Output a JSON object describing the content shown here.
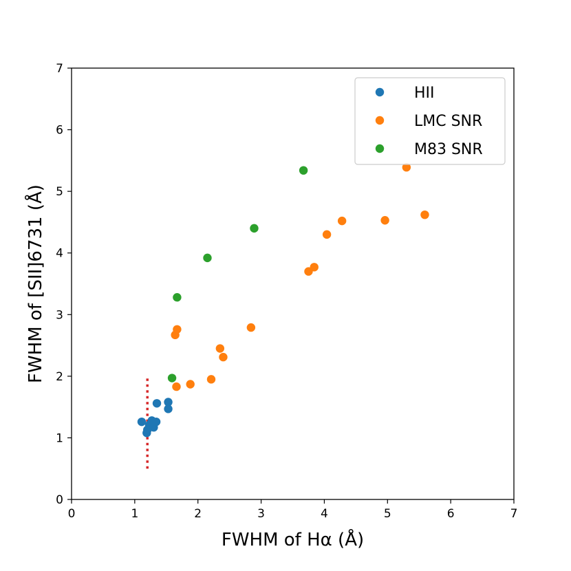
{
  "chart_data": {
    "type": "scatter",
    "title": "",
    "xlabel": "FWHM of Hα (Å)",
    "ylabel": "FWHM of [SII]6731 (Å)",
    "xlim": [
      0,
      7
    ],
    "ylim": [
      0,
      7
    ],
    "xticks": [
      "0",
      "1",
      "2",
      "3",
      "4",
      "5",
      "6",
      "7"
    ],
    "yticks": [
      "0",
      "1",
      "2",
      "3",
      "4",
      "5",
      "6",
      "7"
    ],
    "legend_position": "top-right",
    "series": [
      {
        "name": "HII",
        "color": "#1f77b4",
        "points": [
          [
            1.11,
            1.26
          ],
          [
            1.19,
            1.08
          ],
          [
            1.2,
            1.13
          ],
          [
            1.23,
            1.21
          ],
          [
            1.27,
            1.28
          ],
          [
            1.3,
            1.17
          ],
          [
            1.34,
            1.26
          ],
          [
            1.35,
            1.56
          ],
          [
            1.53,
            1.58
          ],
          [
            1.53,
            1.47
          ]
        ]
      },
      {
        "name": "LMC SNR",
        "color": "#ff7f0e",
        "points": [
          [
            1.64,
            2.67
          ],
          [
            1.67,
            2.76
          ],
          [
            1.66,
            1.83
          ],
          [
            1.88,
            1.87
          ],
          [
            2.21,
            1.95
          ],
          [
            2.35,
            2.45
          ],
          [
            2.4,
            2.31
          ],
          [
            2.84,
            2.79
          ],
          [
            3.75,
            3.7
          ],
          [
            3.84,
            3.77
          ],
          [
            4.04,
            4.3
          ],
          [
            4.28,
            4.52
          ],
          [
            4.96,
            4.53
          ],
          [
            5.3,
            5.39
          ],
          [
            5.59,
            4.62
          ]
        ]
      },
      {
        "name": "M83 SNR",
        "color": "#2ca02c",
        "points": [
          [
            1.59,
            1.97
          ],
          [
            1.67,
            3.28
          ],
          [
            2.15,
            3.92
          ],
          [
            2.89,
            4.4
          ],
          [
            3.67,
            5.34
          ]
        ]
      }
    ],
    "reference_line": {
      "style": "dotted",
      "color": "#d62728",
      "x": 1.2,
      "y_range": [
        0.5,
        2.0
      ]
    }
  }
}
